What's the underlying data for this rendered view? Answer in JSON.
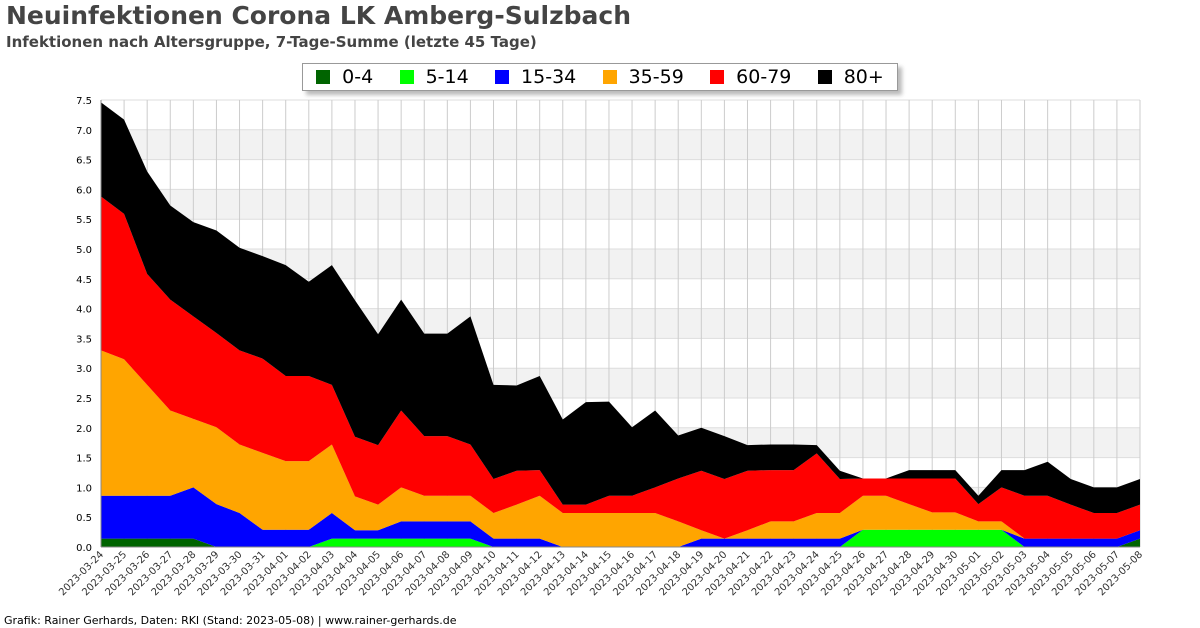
{
  "header": {
    "title": "Neuinfektionen Corona LK Amberg-Sulzbach",
    "subtitle": "Infektionen nach Altersgruppe, 7-Tage-Summe (letzte 45 Tage)"
  },
  "footer": "Grafik: Rainer Gerhards, Daten: RKI (Stand: 2023-05-08) | www.rainer-gerhards.de",
  "chart_data": {
    "type": "area",
    "stacked": true,
    "grid": true,
    "legend_placement": "top",
    "ylim": [
      0,
      7.5
    ],
    "yticks": [
      "0.0",
      "0.5",
      "1.0",
      "1.5",
      "2.0",
      "2.5",
      "3.0",
      "3.5",
      "4.0",
      "4.5",
      "5.0",
      "5.5",
      "6.0",
      "6.5",
      "7.0",
      "7.5"
    ],
    "x": [
      "2023-03-24",
      "2023-03-25",
      "2023-03-26",
      "2023-03-27",
      "2023-03-28",
      "2023-03-29",
      "2023-03-30",
      "2023-03-31",
      "2023-04-01",
      "2023-04-02",
      "2023-04-03",
      "2023-04-04",
      "2023-04-05",
      "2023-04-06",
      "2023-04-07",
      "2023-04-08",
      "2023-04-09",
      "2023-04-10",
      "2023-04-11",
      "2023-04-12",
      "2023-04-13",
      "2023-04-14",
      "2023-04-15",
      "2023-04-16",
      "2023-04-17",
      "2023-04-18",
      "2023-04-19",
      "2023-04-20",
      "2023-04-21",
      "2023-04-22",
      "2023-04-23",
      "2023-04-24",
      "2023-04-25",
      "2023-04-26",
      "2023-04-27",
      "2023-04-28",
      "2023-04-29",
      "2023-04-30",
      "2023-05-01",
      "2023-05-02",
      "2023-05-03",
      "2023-05-04",
      "2023-05-05",
      "2023-05-06",
      "2023-05-07",
      "2023-05-08"
    ],
    "series": [
      {
        "name": "0-4",
        "color": "#006400",
        "values": [
          0.14,
          0.14,
          0.14,
          0.14,
          0.14,
          0,
          0,
          0,
          0,
          0,
          0,
          0,
          0,
          0,
          0,
          0,
          0,
          0,
          0,
          0,
          0,
          0,
          0,
          0,
          0,
          0,
          0,
          0,
          0,
          0,
          0,
          0,
          0,
          0,
          0,
          0,
          0,
          0,
          0,
          0,
          0,
          0,
          0,
          0,
          0,
          0.14
        ]
      },
      {
        "name": "5-14",
        "color": "#00ff00",
        "values": [
          0,
          0,
          0,
          0,
          0,
          0,
          0,
          0,
          0,
          0,
          0.14,
          0.14,
          0.14,
          0.14,
          0.14,
          0.14,
          0.14,
          0,
          0,
          0,
          0,
          0,
          0,
          0,
          0,
          0,
          0,
          0,
          0,
          0,
          0,
          0,
          0,
          0.29,
          0.29,
          0.29,
          0.29,
          0.29,
          0.29,
          0.29,
          0,
          0,
          0,
          0,
          0,
          0
        ]
      },
      {
        "name": "15-34",
        "color": "#0000ff",
        "values": [
          0.72,
          0.72,
          0.72,
          0.72,
          0.86,
          0.72,
          0.57,
          0.29,
          0.29,
          0.29,
          0.43,
          0.14,
          0.14,
          0.29,
          0.29,
          0.29,
          0.29,
          0.14,
          0.14,
          0.14,
          0,
          0,
          0,
          0,
          0,
          0,
          0.14,
          0.14,
          0.14,
          0.14,
          0.14,
          0.14,
          0.14,
          0,
          0,
          0,
          0,
          0,
          0,
          0,
          0.14,
          0.14,
          0.14,
          0.14,
          0.14,
          0.14
        ]
      },
      {
        "name": "35-59",
        "color": "#ffa500",
        "values": [
          2.44,
          2.29,
          1.86,
          1.43,
          1.15,
          1.29,
          1.15,
          1.29,
          1.15,
          1.15,
          1.15,
          0.57,
          0.43,
          0.57,
          0.43,
          0.43,
          0.43,
          0.43,
          0.57,
          0.72,
          0.57,
          0.57,
          0.57,
          0.57,
          0.57,
          0.43,
          0.14,
          0,
          0.14,
          0.29,
          0.29,
          0.43,
          0.43,
          0.57,
          0.57,
          0.43,
          0.29,
          0.29,
          0.14,
          0.14,
          0,
          0,
          0,
          0,
          0,
          0
        ]
      },
      {
        "name": "60-79",
        "color": "#ff0000",
        "values": [
          2.58,
          2.44,
          1.86,
          1.86,
          1.72,
          1.58,
          1.58,
          1.58,
          1.43,
          1.43,
          1.0,
          1.0,
          1.0,
          1.29,
          1.0,
          1.0,
          0.86,
          0.57,
          0.57,
          0.43,
          0.14,
          0.14,
          0.29,
          0.29,
          0.43,
          0.72,
          1.0,
          1.0,
          1.0,
          0.86,
          0.86,
          1.0,
          0.57,
          0.29,
          0.29,
          0.43,
          0.57,
          0.57,
          0.29,
          0.57,
          0.72,
          0.72,
          0.57,
          0.43,
          0.43,
          0.43
        ]
      },
      {
        "name": "80+",
        "color": "#000000",
        "values": [
          1.58,
          1.58,
          1.72,
          1.58,
          1.58,
          1.72,
          1.72,
          1.72,
          1.86,
          1.58,
          2.01,
          2.29,
          1.86,
          1.86,
          1.72,
          1.72,
          2.15,
          1.58,
          1.43,
          1.58,
          1.43,
          1.72,
          1.58,
          1.15,
          1.29,
          0.72,
          0.72,
          0.72,
          0.43,
          0.43,
          0.43,
          0.14,
          0.14,
          0,
          0,
          0.14,
          0.14,
          0.14,
          0.14,
          0.29,
          0.43,
          0.57,
          0.43,
          0.43,
          0.43,
          0.43
        ]
      }
    ]
  }
}
